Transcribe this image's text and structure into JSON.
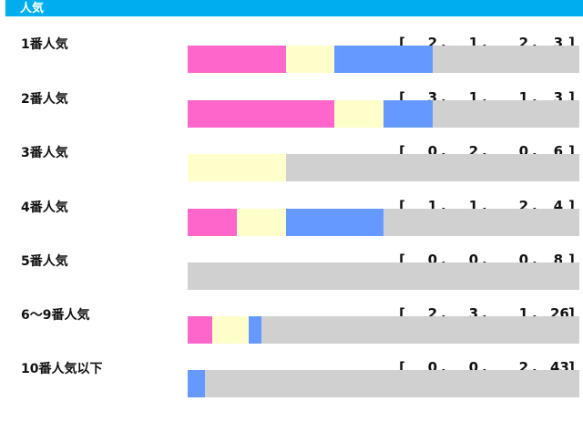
{
  "header": {
    "title": "人気"
  },
  "colors": {
    "first": "#ff66cc",
    "second": "#ffffcc",
    "third": "#6699ff",
    "other": "#d0d0d0"
  },
  "chart_data": {
    "type": "bar",
    "stacked": true,
    "orientation": "horizontal",
    "categories": [
      "1番人気",
      "2番人気",
      "3番人気",
      "4番人気",
      "5番人気",
      "6～9番人気",
      "10番人気以下"
    ],
    "series": [
      {
        "values": [
          2,
          3,
          0,
          1,
          0,
          2,
          0
        ]
      },
      {
        "values": [
          1,
          1,
          2,
          1,
          0,
          3,
          0
        ]
      },
      {
        "values": [
          2,
          1,
          0,
          2,
          0,
          1,
          2
        ]
      },
      {
        "values": [
          3,
          3,
          6,
          4,
          8,
          26,
          43
        ]
      }
    ]
  }
}
